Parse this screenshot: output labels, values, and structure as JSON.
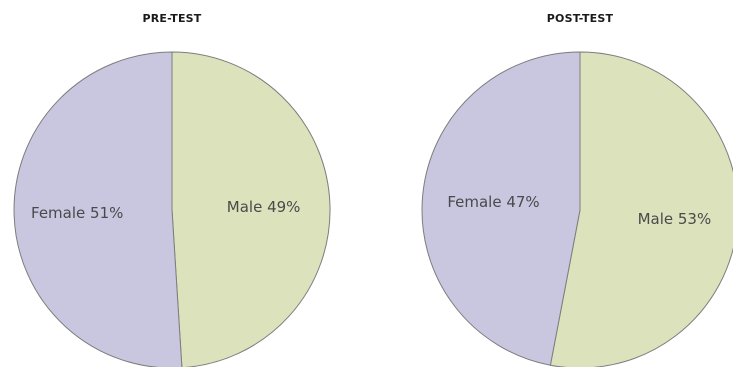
{
  "chart_data": [
    {
      "type": "pie",
      "title": "PRE-TEST",
      "slices": [
        {
          "label": "Male",
          "value": 49,
          "display": "Male 49%",
          "color": "#dce3bc"
        },
        {
          "label": "Female",
          "value": 51,
          "display": "Female 51%",
          "color": "#c9c6e0"
        }
      ]
    },
    {
      "type": "pie",
      "title": "POST-TEST",
      "slices": [
        {
          "label": "Male",
          "value": 53,
          "display": "Male 53%",
          "color": "#dce3bc"
        },
        {
          "label": "Female",
          "value": 47,
          "display": "Female 47%",
          "color": "#c9c6e0"
        }
      ]
    }
  ]
}
